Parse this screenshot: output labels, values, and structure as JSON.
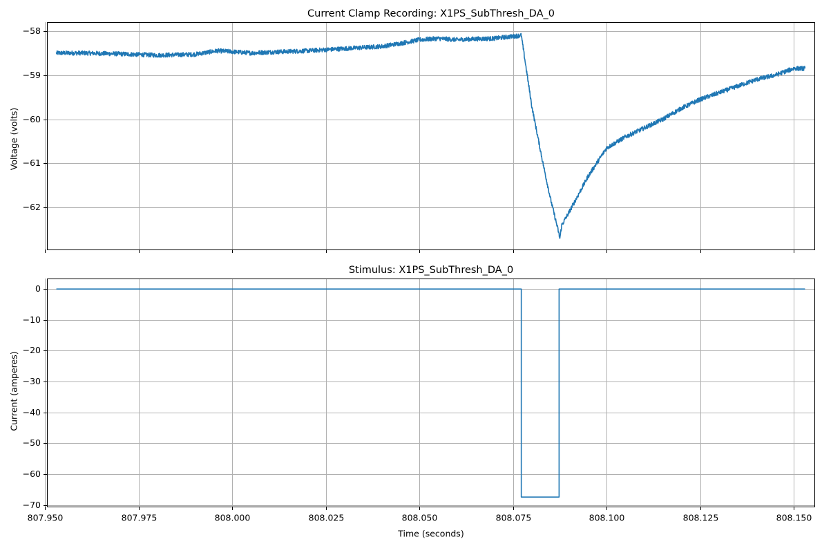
{
  "chart_data": [
    {
      "type": "line",
      "title": "Current Clamp Recording: X1PS_SubThresh_DA_0",
      "xlabel": "",
      "ylabel": "Voltage (volts)",
      "xlim": [
        807.9505,
        808.1555
      ],
      "ylim": [
        -62.95,
        -57.8
      ],
      "xticks": [
        807.95,
        807.975,
        808.0,
        808.025,
        808.05,
        808.075,
        808.1,
        808.125,
        808.15
      ],
      "xtick_labels_visible": false,
      "yticks": [
        -58,
        -59,
        -60,
        -61,
        -62
      ],
      "ytick_labels": [
        "−58",
        "−59",
        "−60",
        "−61",
        "−62"
      ],
      "grid": true,
      "color": "#1f77b4",
      "noise_amplitude": 0.05,
      "series": [
        {
          "x": [
            807.953,
            807.96,
            807.97,
            807.98,
            807.99,
            807.996,
            808.0,
            808.005,
            808.01,
            808.02,
            808.03,
            808.04,
            808.045,
            808.05,
            808.055,
            808.06,
            808.065,
            808.07,
            808.0772,
            808.08,
            808.083,
            808.085,
            808.087,
            808.0875,
            808.088,
            808.09,
            808.095,
            808.1,
            808.105,
            808.11,
            808.115,
            808.12,
            808.125,
            808.13,
            808.135,
            808.14,
            808.145,
            808.15,
            808.153
          ],
          "y": [
            -58.5,
            -58.5,
            -58.52,
            -58.55,
            -58.53,
            -58.45,
            -58.47,
            -58.5,
            -58.48,
            -58.45,
            -58.4,
            -58.35,
            -58.28,
            -58.2,
            -58.17,
            -58.2,
            -58.18,
            -58.17,
            -58.1,
            -59.7,
            -61.0,
            -61.8,
            -62.5,
            -62.7,
            -62.4,
            -62.1,
            -61.3,
            -60.65,
            -60.4,
            -60.2,
            -60.0,
            -59.75,
            -59.55,
            -59.4,
            -59.25,
            -59.1,
            -59.0,
            -58.85,
            -58.85
          ]
        }
      ]
    },
    {
      "type": "line",
      "title": "Stimulus: X1PS_SubThresh_DA_0",
      "xlabel": "Time (seconds)",
      "ylabel": "Current (amperes)",
      "xlim": [
        807.9505,
        808.1555
      ],
      "ylim": [
        -70.5,
        3.4
      ],
      "xticks": [
        807.95,
        807.975,
        808.0,
        808.025,
        808.05,
        808.075,
        808.1,
        808.125,
        808.15
      ],
      "xtick_labels": [
        "807.950",
        "807.975",
        "808.000",
        "808.025",
        "808.050",
        "808.075",
        "808.100",
        "808.125",
        "808.150"
      ],
      "yticks": [
        0,
        -10,
        -20,
        -30,
        -40,
        -50,
        -60,
        -70
      ],
      "ytick_labels": [
        "0",
        "−10",
        "−20",
        "−30",
        "−40",
        "−50",
        "−60",
        "−70"
      ],
      "grid": true,
      "color": "#1f77b4",
      "series": [
        {
          "x": [
            807.953,
            808.0772,
            808.0772,
            808.0873,
            808.0873,
            808.153
          ],
          "y": [
            0,
            0,
            -67.4,
            -67.4,
            0,
            0
          ]
        }
      ]
    }
  ]
}
